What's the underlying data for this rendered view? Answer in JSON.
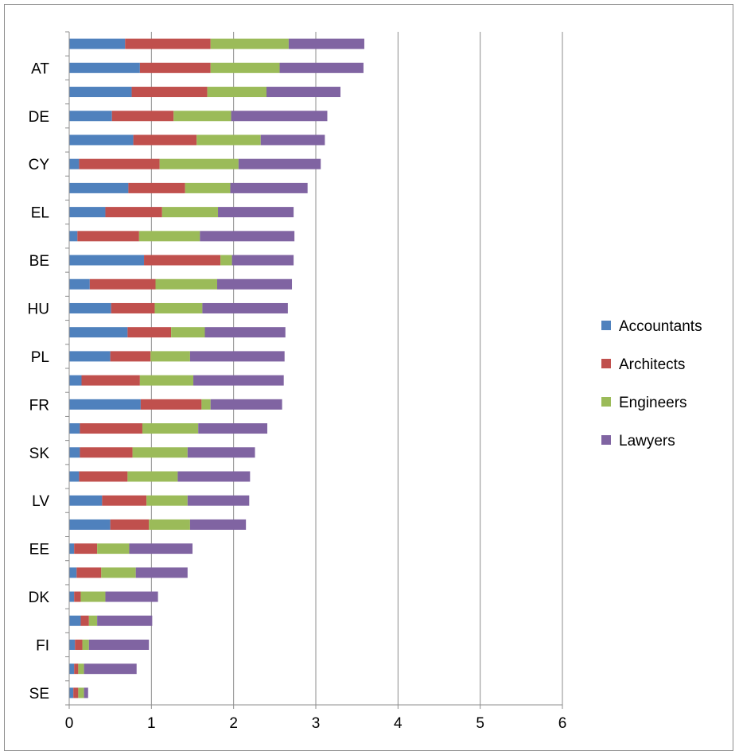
{
  "chart_data": {
    "type": "bar",
    "orientation": "horizontal",
    "stacked": true,
    "title": "",
    "xlabel": "",
    "ylabel": "",
    "xlim": [
      0,
      6
    ],
    "x_ticks": [
      "0",
      "1",
      "2",
      "3",
      "4",
      "5",
      "6"
    ],
    "grid": "vertical major gridlines",
    "legend_position": "right",
    "categories_top_to_bottom": [
      "",
      "AT",
      "",
      "DE",
      "",
      "CY",
      "",
      "EL",
      "",
      "BE",
      "",
      "HU",
      "",
      "PL",
      "",
      "FR",
      "",
      "SK",
      "",
      "LV",
      "",
      "EE",
      "",
      "DK",
      "",
      "FI",
      "",
      "SE"
    ],
    "series": [
      {
        "name": "Accountants",
        "color": "#4f81bd",
        "values": [
          0.68,
          0.86,
          0.76,
          0.52,
          0.78,
          0.12,
          0.72,
          0.44,
          0.1,
          0.91,
          0.25,
          0.51,
          0.71,
          0.5,
          0.15,
          0.87,
          0.13,
          0.13,
          0.12,
          0.4,
          0.5,
          0.06,
          0.09,
          0.06,
          0.14,
          0.07,
          0.06,
          0.05
        ]
      },
      {
        "name": "Architects",
        "color": "#c0504d",
        "values": [
          1.04,
          0.86,
          0.92,
          0.75,
          0.77,
          0.98,
          0.69,
          0.69,
          0.75,
          0.93,
          0.8,
          0.53,
          0.53,
          0.49,
          0.71,
          0.74,
          0.76,
          0.64,
          0.59,
          0.54,
          0.47,
          0.28,
          0.3,
          0.08,
          0.1,
          0.09,
          0.05,
          0.06
        ]
      },
      {
        "name": "Engineers",
        "color": "#9bbb59",
        "values": [
          0.95,
          0.84,
          0.72,
          0.7,
          0.78,
          0.96,
          0.55,
          0.68,
          0.74,
          0.14,
          0.75,
          0.58,
          0.41,
          0.48,
          0.65,
          0.11,
          0.68,
          0.67,
          0.61,
          0.5,
          0.5,
          0.39,
          0.42,
          0.3,
          0.1,
          0.08,
          0.07,
          0.07
        ]
      },
      {
        "name": "Lawyers",
        "color": "#8064a2",
        "values": [
          0.92,
          1.02,
          0.9,
          1.17,
          0.78,
          1.0,
          0.94,
          0.92,
          1.15,
          0.75,
          0.91,
          1.04,
          0.98,
          1.15,
          1.1,
          0.87,
          0.84,
          0.82,
          0.88,
          0.75,
          0.68,
          0.77,
          0.63,
          0.64,
          0.67,
          0.73,
          0.64,
          0.05
        ]
      }
    ]
  },
  "legend": {
    "items": [
      {
        "label": "Accountants",
        "color": "#4f81bd"
      },
      {
        "label": "Architects",
        "color": "#c0504d"
      },
      {
        "label": "Engineers",
        "color": "#9bbb59"
      },
      {
        "label": "Lawyers",
        "color": "#8064a2"
      }
    ]
  }
}
